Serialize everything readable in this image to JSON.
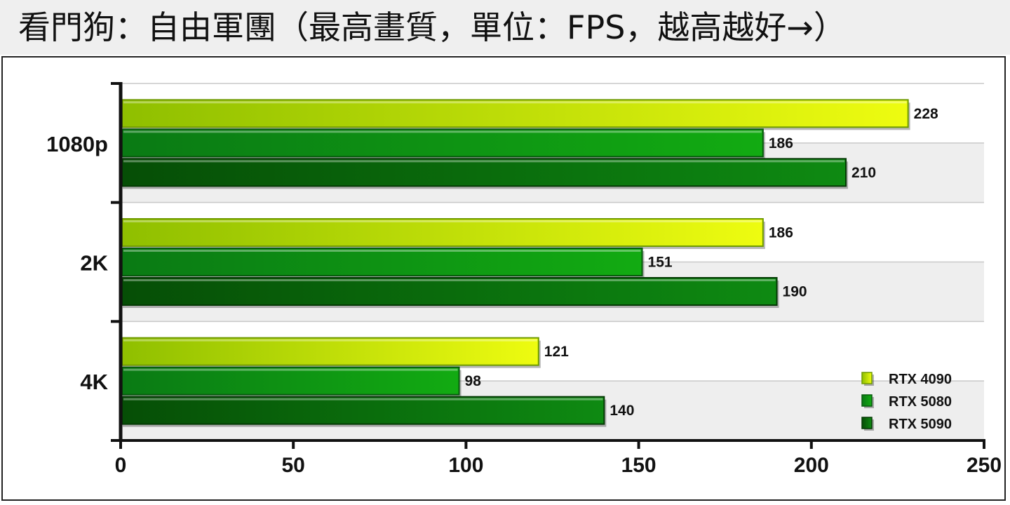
{
  "title": "看門狗：自由軍團（最高畫質，單位：FPS，越高越好→）",
  "colors": {
    "series": [
      {
        "dark": "#8fbf00",
        "light": "#eefc10",
        "stroke": "#6f9a00"
      },
      {
        "dark": "#0a7a14",
        "light": "#12ab12",
        "stroke": "#065a0c"
      },
      {
        "dark": "#064e06",
        "light": "#0e8a12",
        "stroke": "#043a04"
      }
    ]
  },
  "chart_data": {
    "type": "bar",
    "orientation": "horizontal",
    "categories": [
      "1080p",
      "2K",
      "4K"
    ],
    "series": [
      {
        "name": "RTX 4090",
        "values": [
          228,
          186,
          121
        ]
      },
      {
        "name": "RTX 5080",
        "values": [
          186,
          151,
          98
        ]
      },
      {
        "name": "RTX 5090",
        "values": [
          210,
          190,
          140
        ]
      }
    ],
    "xlim": [
      0,
      250
    ],
    "xticks": [
      0,
      50,
      100,
      150,
      200,
      250
    ],
    "grid": true,
    "legend_position": "bottom-right"
  }
}
